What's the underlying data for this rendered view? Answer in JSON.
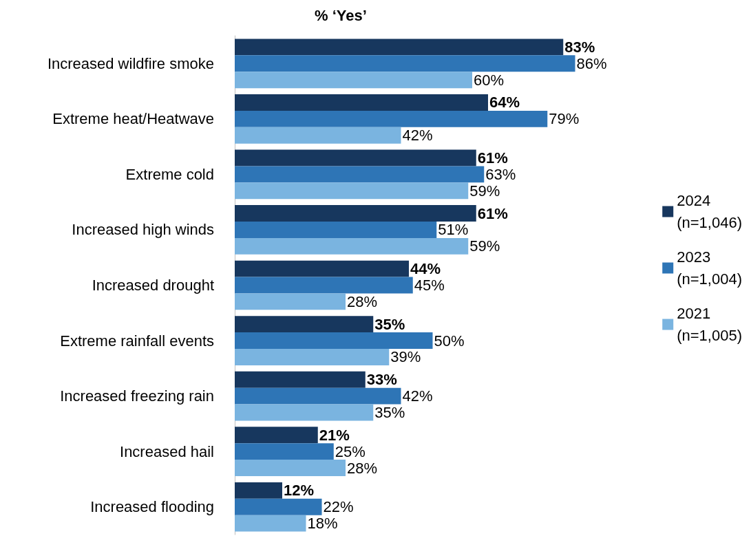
{
  "chart_data": {
    "type": "bar",
    "orientation": "horizontal",
    "title": "% ‘Yes’",
    "categories": [
      "Increased wildfire smoke",
      "Extreme heat/Heatwave",
      "Extreme cold",
      "Increased high winds",
      "Increased drought",
      "Extreme rainfall events",
      "Increased freezing rain",
      "Increased hail",
      "Increased flooding"
    ],
    "series": [
      {
        "name": "2024 (n=1,046)",
        "color": "#17375e",
        "values": [
          83,
          64,
          61,
          61,
          44,
          35,
          33,
          21,
          12
        ],
        "value_labels": [
          "83%",
          "64%",
          "61%",
          "61%",
          "44%",
          "35%",
          "33%",
          "21%",
          "12%"
        ]
      },
      {
        "name": "2023 (n=1,004)",
        "color": "#2e75b6",
        "values": [
          86,
          79,
          63,
          51,
          45,
          50,
          42,
          25,
          22
        ],
        "value_labels": [
          "86%",
          "79%",
          "63%",
          "51%",
          "45%",
          "50%",
          "42%",
          "25%",
          "22%"
        ]
      },
      {
        "name": "2021 (n=1,005)",
        "color": "#7ab4e0",
        "values": [
          60,
          42,
          59,
          59,
          28,
          39,
          35,
          28,
          18
        ],
        "value_labels": [
          "60%",
          "42%",
          "59%",
          "59%",
          "28%",
          "39%",
          "35%",
          "28%",
          "18%"
        ]
      }
    ],
    "tick_labels": "y",
    "grid": false,
    "legend": "right"
  }
}
